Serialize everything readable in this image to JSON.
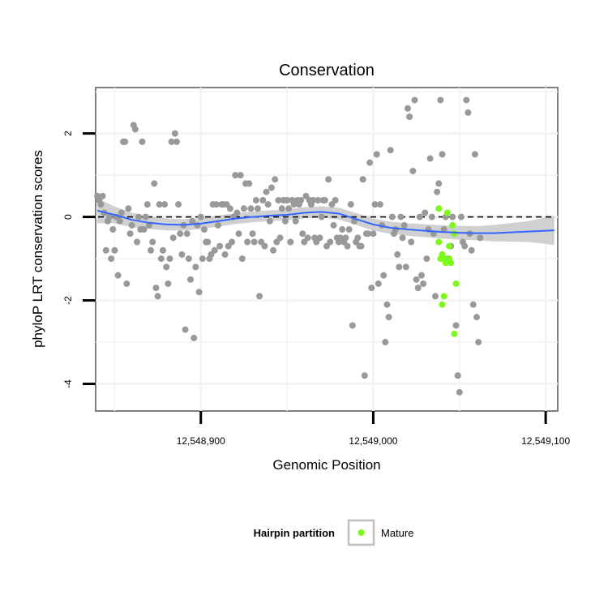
{
  "chart_data": {
    "type": "scatter",
    "title": "Conservation",
    "xlabel": "Genomic Position",
    "ylabel": "phyloP LRT conservation scores",
    "xlim": [
      12548839,
      12549107
    ],
    "ylim": [
      -4.65,
      3.1
    ],
    "x_ticks": [
      12548900,
      12549000,
      12549100
    ],
    "x_tick_labels": [
      "12,548,900",
      "12,549,000",
      "12,549,100"
    ],
    "y_ticks": [
      -4,
      -2,
      0,
      2
    ],
    "y_tick_labels": [
      "-4",
      "-2",
      "0",
      "2"
    ],
    "grid": true,
    "reference_line": {
      "y": 0,
      "style": "dashed"
    },
    "legend": {
      "title": "Hairpin partition",
      "position": "bottom",
      "entries": [
        {
          "label": "Mature",
          "color": "#7ff81c"
        }
      ]
    },
    "colors": {
      "other_points": "#999999",
      "mature_points": "#7ff81c",
      "smooth_line": "#3366ff",
      "confidence_band": "#c8c8c8"
    },
    "series": [
      {
        "name": "",
        "color": "#999999",
        "points": [
          [
            12548840,
            0.5
          ],
          [
            12548841,
            0.4
          ],
          [
            12548842,
            0.3
          ],
          [
            12548843,
            0.5
          ],
          [
            12548844,
            0.1
          ],
          [
            12548845,
            -0.8
          ],
          [
            12548846,
            -0.1
          ],
          [
            12548847,
            0.0
          ],
          [
            12548848,
            -1.0
          ],
          [
            12548849,
            -0.3
          ],
          [
            12548850,
            -0.8
          ],
          [
            12548851,
            0.0
          ],
          [
            12548852,
            -1.4
          ],
          [
            12548853,
            -0.1
          ],
          [
            12548854,
            0.1
          ],
          [
            12548855,
            1.8
          ],
          [
            12548856,
            1.8
          ],
          [
            12548857,
            -1.6
          ],
          [
            12548858,
            0.2
          ],
          [
            12548859,
            -0.4
          ],
          [
            12548860,
            -0.2
          ],
          [
            12548861,
            2.2
          ],
          [
            12548862,
            2.1
          ],
          [
            12548863,
            -0.6
          ],
          [
            12548864,
            0.0
          ],
          [
            12548865,
            -0.3
          ],
          [
            12548866,
            1.8
          ],
          [
            12548867,
            -0.3
          ],
          [
            12548868,
            0.0
          ],
          [
            12548869,
            0.3
          ],
          [
            12548870,
            -0.2
          ],
          [
            12548871,
            -0.8
          ],
          [
            12548872,
            -0.6
          ],
          [
            12548873,
            0.8
          ],
          [
            12548874,
            -1.7
          ],
          [
            12548875,
            -1.9
          ],
          [
            12548876,
            0.3
          ],
          [
            12548877,
            -1.0
          ],
          [
            12548878,
            -0.8
          ],
          [
            12548879,
            0.3
          ],
          [
            12548880,
            -1.2
          ],
          [
            12548881,
            -1.6
          ],
          [
            12548882,
            -1.0
          ],
          [
            12548883,
            1.8
          ],
          [
            12548884,
            -0.5
          ],
          [
            12548885,
            2.0
          ],
          [
            12548886,
            1.8
          ],
          [
            12548887,
            0.3
          ],
          [
            12548888,
            -0.4
          ],
          [
            12548889,
            -0.9
          ],
          [
            12548890,
            -0.2
          ],
          [
            12548891,
            -2.7
          ],
          [
            12548892,
            -0.4
          ],
          [
            12548893,
            -1.0
          ],
          [
            12548894,
            -1.5
          ],
          [
            12548895,
            -0.1
          ],
          [
            12548896,
            -2.9
          ],
          [
            12548897,
            -1.2
          ],
          [
            12548898,
            -0.2
          ],
          [
            12548899,
            -1.8
          ],
          [
            12548900,
            0.0
          ],
          [
            12548901,
            -1.0
          ],
          [
            12548902,
            -0.3
          ],
          [
            12548903,
            -0.6
          ],
          [
            12548904,
            -0.6
          ],
          [
            12548905,
            -1.0
          ],
          [
            12548906,
            -0.9
          ],
          [
            12548907,
            0.3
          ],
          [
            12548908,
            -0.8
          ],
          [
            12548909,
            0.3
          ],
          [
            12548910,
            -0.2
          ],
          [
            12548911,
            -0.7
          ],
          [
            12548912,
            0.3
          ],
          [
            12548913,
            0.3
          ],
          [
            12548914,
            -0.9
          ],
          [
            12548915,
            0.3
          ],
          [
            12548916,
            -0.7
          ],
          [
            12548917,
            0.2
          ],
          [
            12548918,
            -0.6
          ],
          [
            12548919,
            0.0
          ],
          [
            12548920,
            1.0
          ],
          [
            12548921,
            0.1
          ],
          [
            12548922,
            -0.4
          ],
          [
            12548923,
            1.0
          ],
          [
            12548924,
            -1.0
          ],
          [
            12548925,
            0.2
          ],
          [
            12548926,
            0.8
          ],
          [
            12548927,
            -0.6
          ],
          [
            12548928,
            0.8
          ],
          [
            12548929,
            0.2
          ],
          [
            12548930,
            -0.4
          ],
          [
            12548931,
            -0.6
          ],
          [
            12548932,
            0.4
          ],
          [
            12548933,
            0.2
          ],
          [
            12548934,
            -1.9
          ],
          [
            12548935,
            -0.6
          ],
          [
            12548936,
            0.4
          ],
          [
            12548937,
            -0.7
          ],
          [
            12548938,
            0.6
          ],
          [
            12548939,
            0.3
          ],
          [
            12548940,
            -0.1
          ],
          [
            12548941,
            0.7
          ],
          [
            12548942,
            -0.8
          ],
          [
            12548943,
            0.9
          ],
          [
            12548944,
            -0.6
          ],
          [
            12548945,
            0.4
          ],
          [
            12548946,
            -0.5
          ],
          [
            12548947,
            0.2
          ],
          [
            12548948,
            0.4
          ],
          [
            12548949,
            -0.1
          ],
          [
            12548950,
            0.4
          ],
          [
            12548951,
            0.2
          ],
          [
            12548952,
            -0.6
          ],
          [
            12548953,
            0.4
          ],
          [
            12548954,
            0.3
          ],
          [
            12548955,
            -0.1
          ],
          [
            12548956,
            0.4
          ],
          [
            12548957,
            0.3
          ],
          [
            12548958,
            0.4
          ],
          [
            12548959,
            -0.4
          ],
          [
            12548960,
            -0.6
          ],
          [
            12548961,
            0.5
          ],
          [
            12548962,
            -0.5
          ],
          [
            12548963,
            0.4
          ],
          [
            12548964,
            0.3
          ],
          [
            12548965,
            0.4
          ],
          [
            12548966,
            -0.5
          ],
          [
            12548967,
            -0.6
          ],
          [
            12548968,
            0.4
          ],
          [
            12548969,
            -0.5
          ],
          [
            12548970,
            0.0
          ],
          [
            12548971,
            0.4
          ],
          [
            12548972,
            0.4
          ],
          [
            12548973,
            -0.7
          ],
          [
            12548974,
            0.9
          ],
          [
            12548975,
            -0.6
          ],
          [
            12548976,
            0.3
          ],
          [
            12548977,
            -0.2
          ],
          [
            12548978,
            0.4
          ],
          [
            12548979,
            -0.5
          ],
          [
            12548980,
            -0.6
          ],
          [
            12548981,
            -0.5
          ],
          [
            12548982,
            -0.3
          ],
          [
            12548983,
            -0.6
          ],
          [
            12548984,
            -0.5
          ],
          [
            12548985,
            -0.7
          ],
          [
            12548986,
            -0.3
          ],
          [
            12548987,
            0.3
          ],
          [
            12548988,
            -2.6
          ],
          [
            12548989,
            -0.1
          ],
          [
            12548990,
            -0.6
          ],
          [
            12548991,
            -0.5
          ],
          [
            12548992,
            -0.7
          ],
          [
            12548993,
            -0.7
          ],
          [
            12548994,
            0.9
          ],
          [
            12548995,
            -3.8
          ],
          [
            12548996,
            -0.4
          ],
          [
            12548997,
            -0.4
          ],
          [
            12548998,
            1.3
          ],
          [
            12548999,
            -1.7
          ],
          [
            12549000,
            -0.4
          ],
          [
            12549001,
            0.3
          ],
          [
            12549002,
            1.5
          ],
          [
            12549003,
            -1.6
          ],
          [
            12549004,
            0.3
          ],
          [
            12549005,
            -0.2
          ],
          [
            12549006,
            -1.4
          ],
          [
            12549007,
            -3.0
          ],
          [
            12549008,
            -2.1
          ],
          [
            12549009,
            -2.4
          ],
          [
            12549010,
            1.6
          ],
          [
            12549011,
            0.0
          ],
          [
            12549012,
            -0.4
          ],
          [
            12549013,
            -0.3
          ],
          [
            12549014,
            -0.9
          ],
          [
            12549015,
            -1.2
          ],
          [
            12549016,
            0.0
          ],
          [
            12549017,
            -0.5
          ],
          [
            12549018,
            -0.2
          ],
          [
            12549019,
            -1.2
          ],
          [
            12549020,
            2.6
          ],
          [
            12549021,
            2.4
          ],
          [
            12549022,
            -0.6
          ],
          [
            12549023,
            1.1
          ],
          [
            12549024,
            2.8
          ],
          [
            12549025,
            -1.5
          ],
          [
            12549026,
            -1.7
          ],
          [
            12549027,
            0.0
          ],
          [
            12549028,
            -1.4
          ],
          [
            12549029,
            -1.6
          ],
          [
            12549030,
            0.1
          ],
          [
            12549031,
            -1.0
          ],
          [
            12549032,
            -0.3
          ],
          [
            12549033,
            1.4
          ],
          [
            12549034,
            0.0
          ],
          [
            12549035,
            -0.4
          ],
          [
            12549036,
            -1.9
          ],
          [
            12549037,
            0.6
          ],
          [
            12549038,
            0.8
          ],
          [
            12549039,
            2.8
          ],
          [
            12549040,
            1.5
          ],
          [
            12549041,
            -0.3
          ],
          [
            12549042,
            0.0
          ],
          [
            12549043,
            -1.0
          ],
          [
            12549044,
            -1.0
          ],
          [
            12549045,
            -0.7
          ],
          [
            12549046,
            0.0
          ],
          [
            12549047,
            -0.4
          ],
          [
            12549048,
            -2.6
          ],
          [
            12549049,
            -3.8
          ],
          [
            12549050,
            -4.2
          ],
          [
            12549051,
            0.0
          ],
          [
            12549052,
            -0.6
          ],
          [
            12549053,
            -0.7
          ],
          [
            12549054,
            2.8
          ],
          [
            12549055,
            2.5
          ],
          [
            12549056,
            -0.4
          ],
          [
            12549057,
            -0.8
          ],
          [
            12549058,
            -2.1
          ],
          [
            12549059,
            1.5
          ],
          [
            12549060,
            -2.4
          ],
          [
            12549061,
            -3.0
          ],
          [
            12549062,
            -0.5
          ]
        ]
      },
      {
        "name": "Mature",
        "color": "#7ff81c",
        "points": [
          [
            12549038,
            0.2
          ],
          [
            12549038,
            -0.6
          ],
          [
            12549039,
            -1.0
          ],
          [
            12549040,
            -0.9
          ],
          [
            12549040,
            -2.1
          ],
          [
            12549041,
            -1.0
          ],
          [
            12549041,
            -1.9
          ],
          [
            12549042,
            -1.1
          ],
          [
            12549043,
            0.1
          ],
          [
            12549044,
            -0.7
          ],
          [
            12549044,
            -1.0
          ],
          [
            12549045,
            -1.1
          ],
          [
            12549046,
            -0.2
          ],
          [
            12549047,
            -0.4
          ],
          [
            12549047,
            -2.8
          ],
          [
            12549048,
            -1.6
          ]
        ]
      }
    ],
    "smooth_line": [
      [
        12548840,
        0.15
      ],
      [
        12548850,
        0.05
      ],
      [
        12548860,
        -0.07
      ],
      [
        12548870,
        -0.14
      ],
      [
        12548880,
        -0.18
      ],
      [
        12548890,
        -0.19
      ],
      [
        12548900,
        -0.16
      ],
      [
        12548910,
        -0.1
      ],
      [
        12548920,
        -0.04
      ],
      [
        12548930,
        0.0
      ],
      [
        12548940,
        0.03
      ],
      [
        12548950,
        0.05
      ],
      [
        12548960,
        0.1
      ],
      [
        12548970,
        0.12
      ],
      [
        12548980,
        0.08
      ],
      [
        12548990,
        -0.05
      ],
      [
        12549000,
        -0.18
      ],
      [
        12549010,
        -0.26
      ],
      [
        12549020,
        -0.3
      ],
      [
        12549030,
        -0.33
      ],
      [
        12549040,
        -0.36
      ],
      [
        12549050,
        -0.38
      ],
      [
        12549060,
        -0.39
      ],
      [
        12549070,
        -0.39
      ],
      [
        12549080,
        -0.37
      ],
      [
        12549090,
        -0.35
      ],
      [
        12549100,
        -0.33
      ],
      [
        12549105,
        -0.32
      ]
    ],
    "band_halfwidth": [
      [
        12548840,
        0.3
      ],
      [
        12548850,
        0.2
      ],
      [
        12548870,
        0.15
      ],
      [
        12548900,
        0.13
      ],
      [
        12548950,
        0.13
      ],
      [
        12548980,
        0.14
      ],
      [
        12549020,
        0.15
      ],
      [
        12549060,
        0.17
      ],
      [
        12549090,
        0.25
      ],
      [
        12549105,
        0.35
      ]
    ]
  }
}
